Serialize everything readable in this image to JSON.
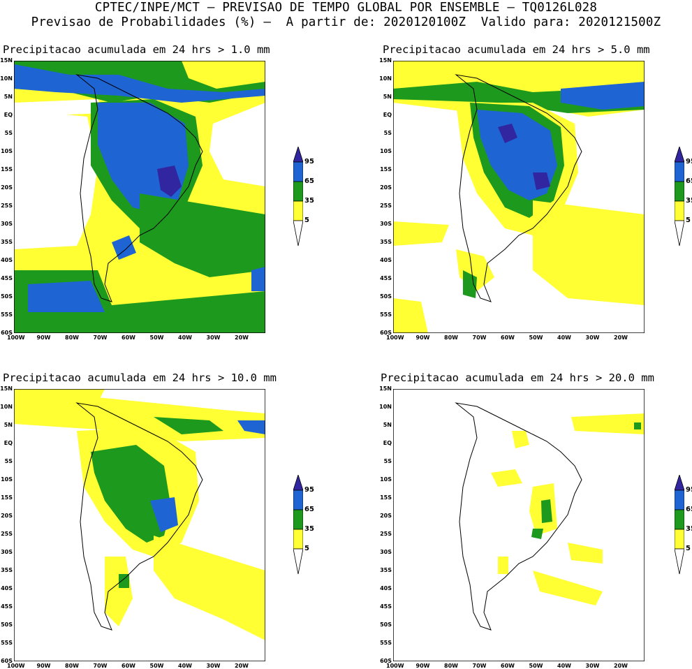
{
  "header": {
    "line1": "CPTEC/INPE/MCT – PREVISAO DE TEMPO GLOBAL POR ENSEMBLE – TQ0126L028",
    "line2": "Previsao de Probabilidades (%) –  A partir de: 2020120100Z  Valido para: 2020121500Z"
  },
  "colors": {
    "yellow": "#ffff33",
    "green": "#1d9a1d",
    "blue": "#1e64d2",
    "purple": "#3226a0",
    "white": "#ffffff"
  },
  "lat_labels": [
    "15N",
    "10N",
    "5N",
    "EQ",
    "5S",
    "10S",
    "15S",
    "20S",
    "25S",
    "30S",
    "35S",
    "40S",
    "45S",
    "50S",
    "55S",
    "60S"
  ],
  "lon_labels": [
    "100W",
    "90W",
    "80W",
    "70W",
    "60W",
    "50W",
    "40W",
    "30W",
    "20W"
  ],
  "colorbar": {
    "levels": [
      "95",
      "65",
      "35",
      "5"
    ]
  },
  "panels": [
    {
      "id": "p1",
      "title": "Precipitacao acumulada em 24 hrs > 1.0 mm"
    },
    {
      "id": "p2",
      "title": "Precipitacao acumulada em 24 hrs > 5.0 mm"
    },
    {
      "id": "p3",
      "title": "Precipitacao acumulada em 24 hrs > 10.0 mm"
    },
    {
      "id": "p4",
      "title": "Precipitacao acumulada em 24 hrs > 20.0 mm"
    }
  ]
}
